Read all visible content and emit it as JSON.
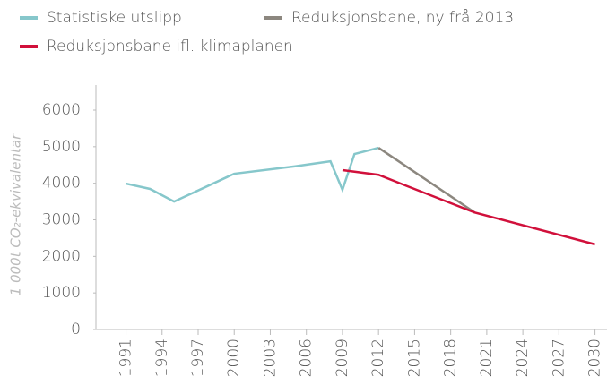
{
  "chart_data": {
    "type": "line",
    "y_label": "1 000t CO₂-ekvivalentar",
    "series": [
      {
        "name": "Statistiske utslipp",
        "color": "#86c7cb",
        "x": [
          1991,
          1993,
          1995,
          2000,
          2005,
          2008,
          2009,
          2010,
          2012
        ],
        "values": [
          3990,
          3845,
          3500,
          4260,
          4460,
          4600,
          3820,
          4800,
          4970
        ]
      },
      {
        "name": "Reduksjonsbane, ny frå 2013",
        "color": "#8c877f",
        "x": [
          2012,
          2020
        ],
        "values": [
          4970,
          3200
        ]
      },
      {
        "name": "Reduksjonsbane ifl. klimaplanen",
        "color": "#d1103b",
        "x": [
          2009,
          2012,
          2014,
          2020,
          2030
        ],
        "values": [
          4360,
          4230,
          3970,
          3200,
          2330
        ]
      }
    ],
    "xlim": [
      1988.5,
      2031
    ],
    "xticks": [
      1991,
      1994,
      1997,
      2000,
      2003,
      2006,
      2009,
      2012,
      2015,
      2018,
      2021,
      2024,
      2027,
      2030
    ],
    "ylim": [
      0,
      6000
    ],
    "yticks": [
      0,
      1000,
      2000,
      3000,
      4000,
      5000,
      6000
    ]
  }
}
